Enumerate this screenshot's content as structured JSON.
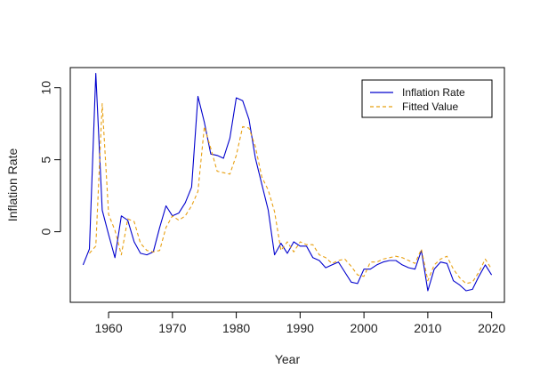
{
  "chart_data": {
    "type": "line",
    "title": "",
    "xlabel": "Year",
    "ylabel": "Inflation Rate",
    "xlim": [
      1954,
      2022
    ],
    "ylim": [
      -4.9,
      11.4
    ],
    "xticks": [
      1960,
      1970,
      1980,
      1990,
      2000,
      2010,
      2020
    ],
    "yticks": [
      0,
      5,
      10
    ],
    "grid": false,
    "legend": {
      "position": "top-right"
    },
    "x": [
      1956,
      1957,
      1958,
      1959,
      1960,
      1961,
      1962,
      1963,
      1964,
      1965,
      1966,
      1967,
      1968,
      1969,
      1970,
      1971,
      1972,
      1973,
      1974,
      1975,
      1976,
      1977,
      1978,
      1979,
      1980,
      1981,
      1982,
      1983,
      1984,
      1985,
      1986,
      1987,
      1988,
      1989,
      1990,
      1991,
      1992,
      1993,
      1994,
      1995,
      1996,
      1997,
      1998,
      1999,
      2000,
      2001,
      2002,
      2003,
      2004,
      2005,
      2006,
      2007,
      2008,
      2009,
      2010,
      2011,
      2012,
      2013,
      2014,
      2015,
      2016,
      2017,
      2018,
      2019,
      2020
    ],
    "series": [
      {
        "name": "Inflation Rate",
        "color": "#0000cd",
        "style": "solid",
        "values": [
          -2.3,
          -1.2,
          11.0,
          1.5,
          -0.2,
          -1.8,
          1.1,
          0.8,
          -0.7,
          -1.5,
          -1.6,
          -1.4,
          0.3,
          1.8,
          1.1,
          1.3,
          2.0,
          3.1,
          9.4,
          7.6,
          5.4,
          5.3,
          5.1,
          6.5,
          9.3,
          9.1,
          7.8,
          5.1,
          3.3,
          1.5,
          -1.6,
          -0.8,
          -1.5,
          -0.7,
          -1.0,
          -1.0,
          -1.8,
          -2.0,
          -2.5,
          -2.3,
          -2.1,
          -2.8,
          -3.5,
          -3.6,
          -2.6,
          -2.6,
          -2.3,
          -2.1,
          -2.0,
          -2.0,
          -2.3,
          -2.5,
          -2.6,
          -1.3,
          -4.1,
          -2.6,
          -2.1,
          -2.2,
          -3.4,
          -3.7,
          -4.1,
          -4.0,
          -3.1,
          -2.3,
          -3.0
        ]
      },
      {
        "name": "Fitted Value",
        "color": "#e8a012",
        "style": "dashed",
        "values": [
          null,
          -1.5,
          -1.0,
          8.9,
          1.2,
          0.1,
          -1.6,
          0.9,
          0.7,
          -0.8,
          -1.3,
          -1.4,
          -1.3,
          0.3,
          1.1,
          0.8,
          1.1,
          1.8,
          2.8,
          7.3,
          5.8,
          4.2,
          4.1,
          4.0,
          5.3,
          7.3,
          7.2,
          5.9,
          3.8,
          2.9,
          1.4,
          -1.3,
          -0.7,
          -1.4,
          -0.7,
          -0.9,
          -0.9,
          -1.6,
          -1.8,
          -2.2,
          -2.0,
          -1.9,
          -2.4,
          -3.0,
          -3.1,
          -2.1,
          -2.1,
          -1.9,
          -1.8,
          -1.7,
          -1.8,
          -2.0,
          -2.2,
          -1.2,
          -3.4,
          -2.3,
          -1.9,
          -1.7,
          -2.6,
          -3.2,
          -3.6,
          -3.5,
          -2.8,
          -1.9,
          -2.6
        ]
      }
    ]
  }
}
